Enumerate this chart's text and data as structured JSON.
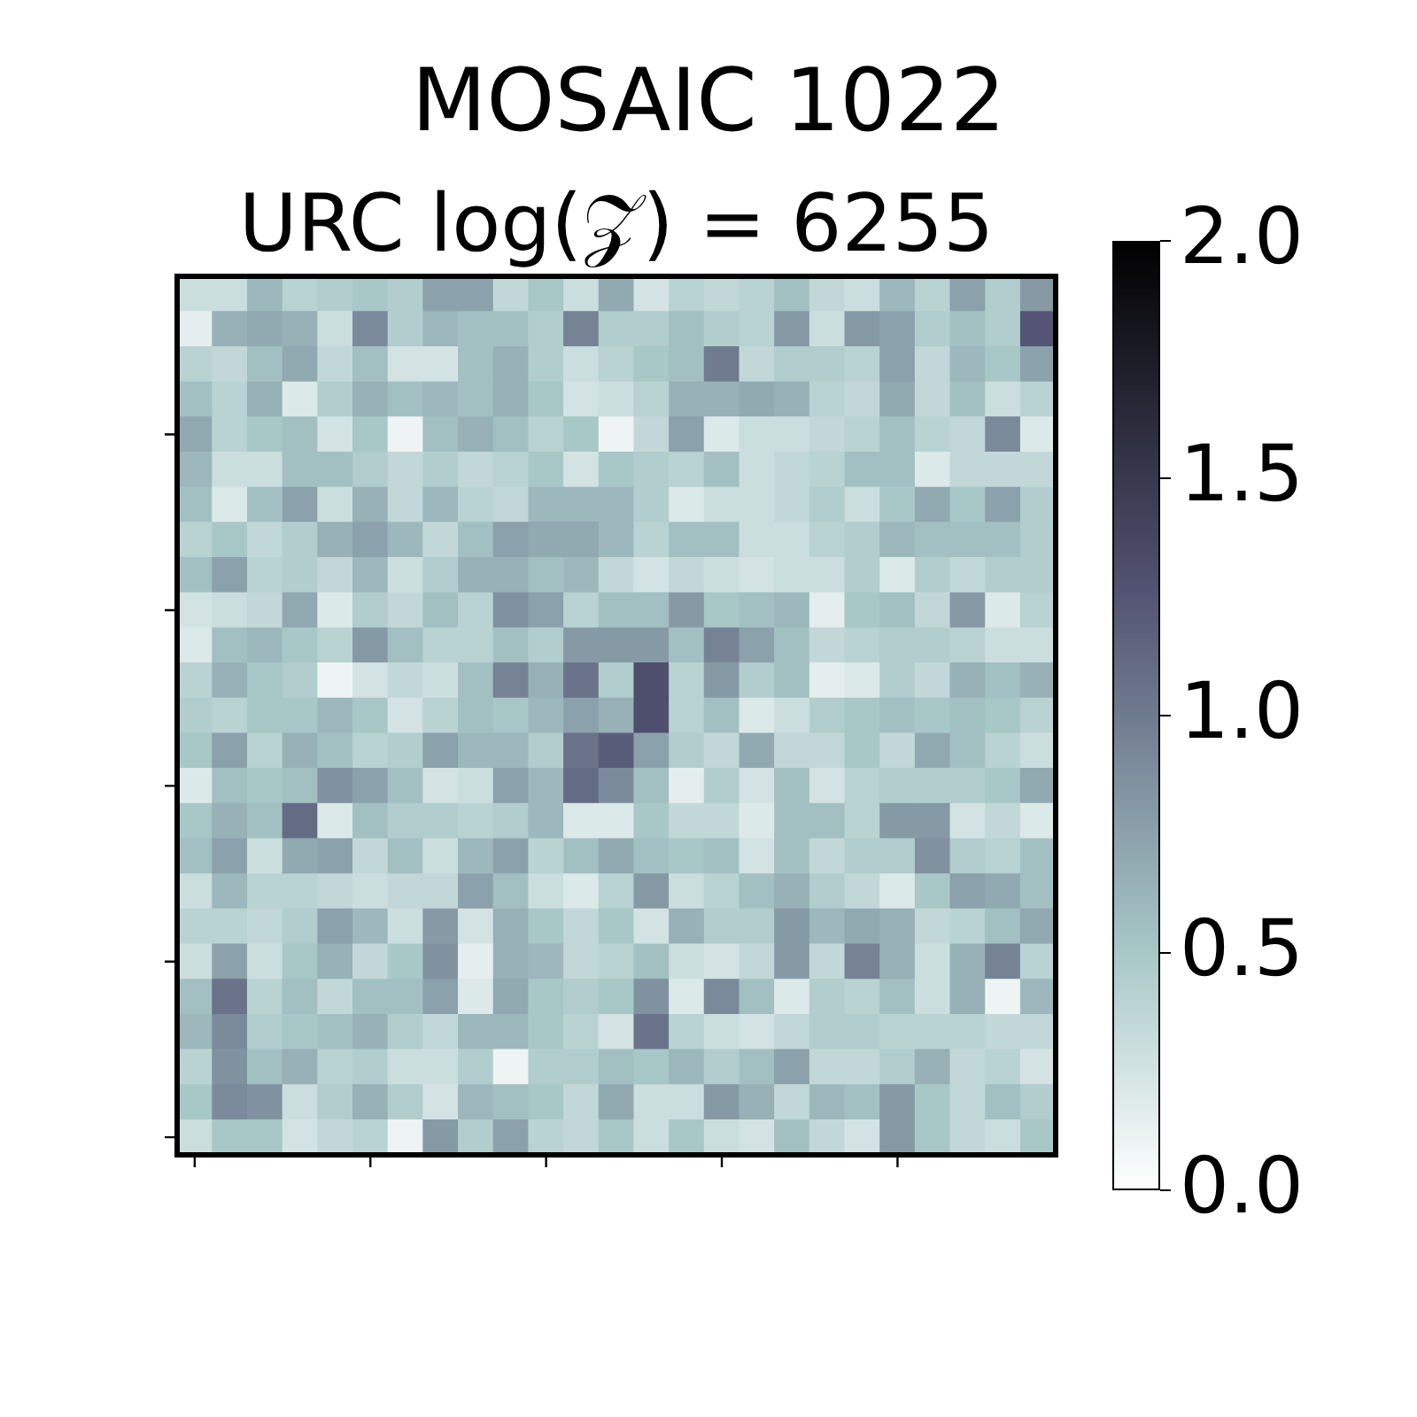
{
  "chart_data": {
    "type": "heatmap",
    "title": "MOSAIC 1022",
    "subtitle": "URC log(𝒵) = 6255",
    "categories": [
      null,
      null,
      null,
      null,
      null,
      null,
      null,
      null,
      null,
      null,
      null,
      null,
      null,
      null,
      null,
      null,
      null,
      null,
      null,
      null,
      null,
      null,
      null,
      null,
      null
    ],
    "y_categories": [
      null,
      null,
      null,
      null,
      null,
      null,
      null,
      null,
      null,
      null,
      null,
      null,
      null,
      null,
      null,
      null,
      null,
      null,
      null,
      null,
      null,
      null,
      null,
      null,
      null
    ],
    "cells": [
      [
        0.3,
        0.3,
        0.6,
        0.4,
        0.45,
        0.5,
        0.45,
        0.75,
        0.75,
        0.35,
        0.5,
        0.3,
        0.7,
        0.25,
        0.4,
        0.35,
        0.4,
        0.55,
        0.35,
        0.3,
        0.6,
        0.4,
        0.75,
        0.45,
        0.8
      ],
      [
        0.15,
        0.65,
        0.7,
        0.65,
        0.3,
        0.9,
        0.45,
        0.6,
        0.55,
        0.55,
        0.45,
        0.95,
        0.45,
        0.45,
        0.55,
        0.45,
        0.4,
        0.8,
        0.3,
        0.8,
        0.75,
        0.45,
        0.55,
        0.45,
        1.25
      ],
      [
        0.4,
        0.35,
        0.55,
        0.7,
        0.35,
        0.55,
        0.25,
        0.25,
        0.55,
        0.65,
        0.45,
        0.3,
        0.4,
        0.5,
        0.55,
        1.0,
        0.35,
        0.45,
        0.45,
        0.4,
        0.75,
        0.35,
        0.6,
        0.5,
        0.75
      ],
      [
        0.55,
        0.4,
        0.65,
        0.2,
        0.45,
        0.65,
        0.55,
        0.6,
        0.55,
        0.65,
        0.5,
        0.25,
        0.3,
        0.4,
        0.65,
        0.65,
        0.7,
        0.65,
        0.4,
        0.35,
        0.7,
        0.35,
        0.55,
        0.3,
        0.4
      ],
      [
        0.7,
        0.4,
        0.5,
        0.55,
        0.25,
        0.5,
        0.1,
        0.55,
        0.65,
        0.55,
        0.4,
        0.5,
        0.1,
        0.35,
        0.75,
        0.2,
        0.3,
        0.3,
        0.35,
        0.4,
        0.55,
        0.4,
        0.35,
        0.9,
        0.2
      ],
      [
        0.6,
        0.3,
        0.3,
        0.55,
        0.55,
        0.45,
        0.35,
        0.45,
        0.35,
        0.4,
        0.5,
        0.25,
        0.5,
        0.45,
        0.4,
        0.55,
        0.3,
        0.35,
        0.4,
        0.55,
        0.55,
        0.2,
        0.35,
        0.35,
        0.35
      ],
      [
        0.55,
        0.2,
        0.55,
        0.75,
        0.3,
        0.65,
        0.35,
        0.6,
        0.4,
        0.35,
        0.6,
        0.6,
        0.6,
        0.45,
        0.2,
        0.3,
        0.3,
        0.35,
        0.45,
        0.3,
        0.5,
        0.7,
        0.5,
        0.75,
        0.45
      ],
      [
        0.4,
        0.5,
        0.35,
        0.45,
        0.65,
        0.75,
        0.6,
        0.35,
        0.55,
        0.75,
        0.7,
        0.7,
        0.6,
        0.4,
        0.55,
        0.55,
        0.3,
        0.3,
        0.4,
        0.45,
        0.6,
        0.55,
        0.55,
        0.55,
        0.45
      ],
      [
        0.55,
        0.75,
        0.4,
        0.45,
        0.35,
        0.6,
        0.3,
        0.45,
        0.65,
        0.65,
        0.55,
        0.6,
        0.35,
        0.25,
        0.35,
        0.3,
        0.25,
        0.3,
        0.3,
        0.45,
        0.2,
        0.45,
        0.35,
        0.45,
        0.45
      ],
      [
        0.25,
        0.3,
        0.35,
        0.7,
        0.2,
        0.45,
        0.35,
        0.55,
        0.4,
        0.85,
        0.75,
        0.4,
        0.55,
        0.55,
        0.8,
        0.5,
        0.55,
        0.6,
        0.15,
        0.5,
        0.55,
        0.35,
        0.8,
        0.2,
        0.4
      ],
      [
        0.2,
        0.55,
        0.6,
        0.5,
        0.4,
        0.8,
        0.55,
        0.4,
        0.4,
        0.55,
        0.45,
        0.8,
        0.8,
        0.8,
        0.55,
        0.95,
        0.75,
        0.55,
        0.35,
        0.4,
        0.45,
        0.45,
        0.4,
        0.3,
        0.3
      ],
      [
        0.4,
        0.65,
        0.5,
        0.45,
        0.1,
        0.25,
        0.35,
        0.3,
        0.55,
        0.95,
        0.65,
        1.05,
        0.45,
        1.3,
        0.4,
        0.8,
        0.45,
        0.55,
        0.15,
        0.2,
        0.45,
        0.35,
        0.65,
        0.55,
        0.65
      ],
      [
        0.45,
        0.4,
        0.5,
        0.5,
        0.6,
        0.5,
        0.25,
        0.4,
        0.55,
        0.5,
        0.6,
        0.75,
        0.65,
        1.3,
        0.4,
        0.55,
        0.2,
        0.3,
        0.45,
        0.5,
        0.55,
        0.5,
        0.55,
        0.5,
        0.4
      ],
      [
        0.5,
        0.75,
        0.4,
        0.65,
        0.55,
        0.4,
        0.45,
        0.75,
        0.6,
        0.6,
        0.45,
        1.05,
        1.2,
        0.75,
        0.45,
        0.35,
        0.7,
        0.35,
        0.35,
        0.5,
        0.35,
        0.7,
        0.55,
        0.4,
        0.3
      ],
      [
        0.2,
        0.55,
        0.5,
        0.55,
        0.85,
        0.75,
        0.55,
        0.25,
        0.3,
        0.75,
        0.6,
        1.1,
        0.9,
        0.55,
        0.15,
        0.45,
        0.25,
        0.55,
        0.25,
        0.4,
        0.45,
        0.45,
        0.45,
        0.5,
        0.7
      ],
      [
        0.5,
        0.65,
        0.55,
        1.1,
        0.2,
        0.55,
        0.45,
        0.45,
        0.4,
        0.45,
        0.6,
        0.2,
        0.2,
        0.5,
        0.35,
        0.35,
        0.2,
        0.55,
        0.55,
        0.4,
        0.8,
        0.8,
        0.25,
        0.35,
        0.2
      ],
      [
        0.55,
        0.75,
        0.3,
        0.7,
        0.75,
        0.35,
        0.55,
        0.3,
        0.6,
        0.75,
        0.4,
        0.55,
        0.7,
        0.55,
        0.5,
        0.55,
        0.25,
        0.55,
        0.35,
        0.45,
        0.45,
        0.85,
        0.45,
        0.4,
        0.55
      ],
      [
        0.3,
        0.6,
        0.4,
        0.4,
        0.35,
        0.3,
        0.35,
        0.35,
        0.75,
        0.55,
        0.3,
        0.2,
        0.4,
        0.8,
        0.3,
        0.4,
        0.55,
        0.65,
        0.45,
        0.35,
        0.2,
        0.5,
        0.75,
        0.7,
        0.55
      ],
      [
        0.4,
        0.4,
        0.35,
        0.45,
        0.75,
        0.6,
        0.3,
        0.8,
        0.25,
        0.65,
        0.5,
        0.35,
        0.5,
        0.25,
        0.65,
        0.45,
        0.45,
        0.8,
        0.6,
        0.7,
        0.65,
        0.35,
        0.4,
        0.55,
        0.7
      ],
      [
        0.3,
        0.75,
        0.3,
        0.5,
        0.65,
        0.35,
        0.5,
        0.85,
        0.15,
        0.65,
        0.6,
        0.35,
        0.4,
        0.55,
        0.3,
        0.25,
        0.35,
        0.8,
        0.35,
        0.95,
        0.65,
        0.3,
        0.65,
        0.95,
        0.4
      ],
      [
        0.55,
        1.05,
        0.4,
        0.55,
        0.35,
        0.55,
        0.55,
        0.75,
        0.2,
        0.7,
        0.5,
        0.45,
        0.5,
        0.85,
        0.2,
        0.9,
        0.55,
        0.2,
        0.45,
        0.4,
        0.55,
        0.3,
        0.65,
        0.1,
        0.6
      ],
      [
        0.6,
        0.9,
        0.45,
        0.5,
        0.55,
        0.65,
        0.45,
        0.35,
        0.6,
        0.6,
        0.5,
        0.4,
        0.25,
        1.05,
        0.4,
        0.3,
        0.25,
        0.35,
        0.45,
        0.45,
        0.4,
        0.4,
        0.4,
        0.35,
        0.35
      ],
      [
        0.4,
        0.85,
        0.55,
        0.65,
        0.4,
        0.45,
        0.3,
        0.3,
        0.45,
        0.1,
        0.45,
        0.45,
        0.55,
        0.5,
        0.6,
        0.45,
        0.55,
        0.75,
        0.35,
        0.35,
        0.45,
        0.65,
        0.35,
        0.4,
        0.25
      ],
      [
        0.5,
        0.9,
        0.85,
        0.3,
        0.45,
        0.65,
        0.45,
        0.25,
        0.6,
        0.55,
        0.5,
        0.35,
        0.7,
        0.3,
        0.3,
        0.8,
        0.65,
        0.35,
        0.6,
        0.55,
        0.8,
        0.5,
        0.35,
        0.55,
        0.45
      ],
      [
        0.3,
        0.5,
        0.5,
        0.25,
        0.35,
        0.4,
        0.1,
        0.8,
        0.45,
        0.75,
        0.4,
        0.35,
        0.5,
        0.3,
        0.5,
        0.3,
        0.25,
        0.55,
        0.35,
        0.25,
        0.8,
        0.5,
        0.35,
        0.3,
        0.5
      ]
    ],
    "clim": [
      0,
      2
    ],
    "cticks": [
      {
        "value": 0,
        "label": "0.0"
      },
      0.5,
      {
        "value": 1,
        "label": "1.0"
      },
      1.5,
      {
        "value": 2,
        "label": "2.0"
      }
    ]
  }
}
